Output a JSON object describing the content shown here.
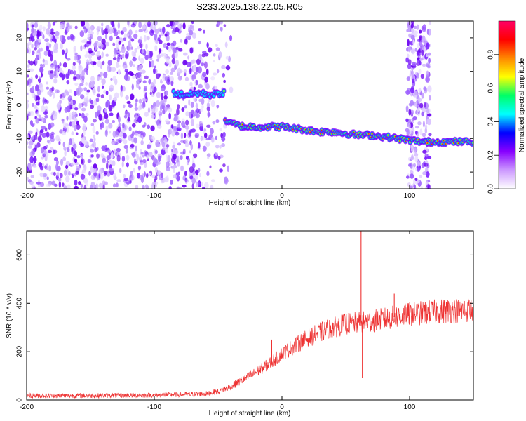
{
  "title": "S233.2025.138.22.05.R05",
  "chart_data": [
    {
      "type": "heatmap",
      "xlabel": "Height of straight line (km)",
      "ylabel": "Frequency (Hz)",
      "xlim": [
        -200,
        150
      ],
      "ylim": [
        -25,
        25
      ],
      "x_ticks": [
        -200,
        -100,
        0,
        100
      ],
      "y_ticks": [
        -20,
        -10,
        0,
        10,
        20
      ],
      "colorbar": {
        "label": "Normalized spectral amplitude",
        "range": [
          0,
          1
        ],
        "ticks": [
          "0.0",
          "0.2",
          "0.4",
          "0.6",
          "0.8"
        ],
        "colors": [
          "#ffffff",
          "#cc99ff",
          "#8800ff",
          "#0000ff",
          "#00ffff",
          "#00ff66",
          "#ffff00",
          "#ff8800",
          "#ff0000",
          "#ff0066"
        ]
      },
      "noise_region_x": [
        -200,
        -35
      ],
      "noise_band_x": [
        98,
        116
      ],
      "signal_track": [
        {
          "x": -85,
          "y": 3.5
        },
        {
          "x": -75,
          "y": 3
        },
        {
          "x": -65,
          "y": 3.5
        },
        {
          "x": -55,
          "y": 3
        },
        {
          "x": -48,
          "y": 3.5
        },
        {
          "x": -45,
          "y": -4.5
        },
        {
          "x": -40,
          "y": -5.5
        },
        {
          "x": -30,
          "y": -6.5
        },
        {
          "x": -20,
          "y": -6.5
        },
        {
          "x": -10,
          "y": -6.5
        },
        {
          "x": 0,
          "y": -6.5
        },
        {
          "x": 10,
          "y": -7
        },
        {
          "x": 20,
          "y": -7.5
        },
        {
          "x": 30,
          "y": -8
        },
        {
          "x": 40,
          "y": -8
        },
        {
          "x": 50,
          "y": -8.5
        },
        {
          "x": 60,
          "y": -9
        },
        {
          "x": 70,
          "y": -9
        },
        {
          "x": 80,
          "y": -9.5
        },
        {
          "x": 90,
          "y": -10
        },
        {
          "x": 100,
          "y": -10.5
        },
        {
          "x": 110,
          "y": -11
        },
        {
          "x": 120,
          "y": -11
        },
        {
          "x": 130,
          "y": -11
        },
        {
          "x": 140,
          "y": -11
        },
        {
          "x": 150,
          "y": -11
        }
      ]
    },
    {
      "type": "line",
      "xlabel": "Height of straight line (km)",
      "ylabel": "SNR (10 * v/v)",
      "xlim": [
        -200,
        150
      ],
      "ylim": [
        0,
        700
      ],
      "x_ticks": [
        -200,
        -100,
        0,
        100
      ],
      "y_ticks": [
        0,
        200,
        400,
        600
      ],
      "color": "#ee3333",
      "series": [
        {
          "x": [
            -200,
            -150,
            -100,
            -60,
            -50,
            -40,
            -30,
            -20,
            -10,
            0,
            10,
            20,
            30,
            40,
            50,
            60,
            70,
            80,
            90,
            100,
            110,
            120,
            130,
            140,
            150
          ],
          "values": [
            18,
            18,
            20,
            25,
            35,
            55,
            85,
            115,
            150,
            190,
            225,
            255,
            280,
            300,
            315,
            320,
            325,
            335,
            345,
            355,
            360,
            365,
            370,
            370,
            375
          ]
        }
      ],
      "spikes": [
        {
          "x": -8,
          "y": 250
        },
        {
          "x": 62,
          "y": 700
        },
        {
          "x": 63,
          "y": 90
        },
        {
          "x": 88,
          "y": 440
        }
      ]
    }
  ]
}
